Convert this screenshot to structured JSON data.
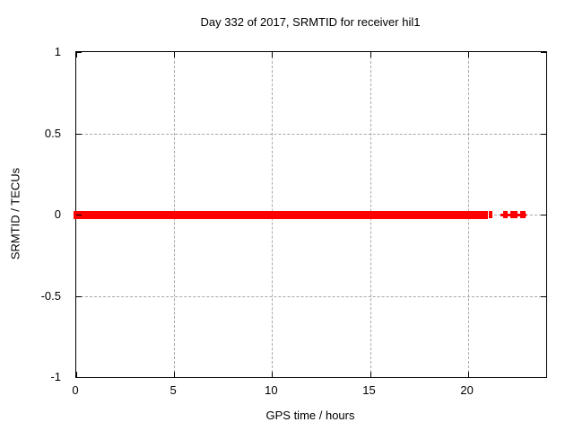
{
  "chart_data": {
    "type": "scatter",
    "title": "Day 332 of 2017, SRMTID for receiver hil1",
    "xlabel": "GPS time / hours",
    "ylabel": "SRMTID / TECUs",
    "xlim": [
      0,
      24
    ],
    "ylim": [
      -1,
      1
    ],
    "xticks": [
      {
        "value": 0,
        "label": "0"
      },
      {
        "value": 5,
        "label": "5"
      },
      {
        "value": 10,
        "label": "10"
      },
      {
        "value": 15,
        "label": "15"
      },
      {
        "value": 20,
        "label": "20"
      }
    ],
    "yticks": [
      {
        "value": 1,
        "label": "1"
      },
      {
        "value": 0.5,
        "label": "0.5"
      },
      {
        "value": 0,
        "label": "0"
      },
      {
        "value": -0.5,
        "label": "-0.5"
      },
      {
        "value": -1,
        "label": "-1"
      }
    ],
    "grid": true,
    "legend_position": "none",
    "series": [
      {
        "name": "SRMTID",
        "marker": "filled-square",
        "color": "#ff0000",
        "y_value": 0,
        "segments_hours": [
          {
            "start": 0,
            "end": 21.0,
            "kind": "dense-band"
          },
          {
            "start": 21.05,
            "end": 21.25,
            "kind": "point"
          },
          {
            "start": 21.65,
            "end": 23.0,
            "kind": "connector-line"
          },
          {
            "start": 21.8,
            "end": 22.05,
            "kind": "point"
          },
          {
            "start": 22.15,
            "end": 22.55,
            "kind": "point"
          },
          {
            "start": 22.65,
            "end": 22.95,
            "kind": "point"
          }
        ]
      }
    ],
    "colors": {
      "data": "#ff0000",
      "grid": "#a8a8a8",
      "border": "#000000",
      "text": "#000000",
      "background": "#ffffff"
    }
  }
}
